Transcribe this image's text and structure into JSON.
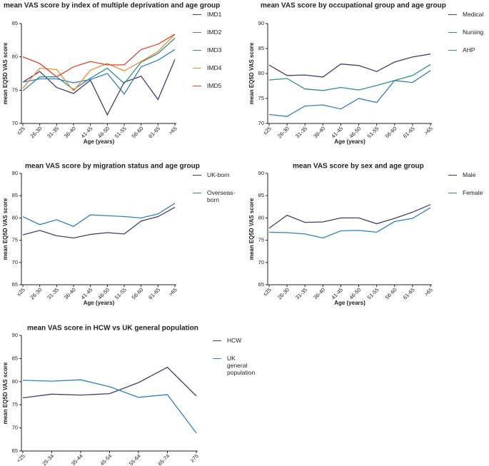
{
  "chart_data": [
    {
      "type": "line",
      "title": "mean VAS score by index of multiple deprivation and age group",
      "x_label": "Age (years)",
      "y_label": "mean EQ5D VAS score",
      "categories": [
        "≤25",
        "26-30",
        "31-35",
        "36-40",
        "41-45",
        "46-50",
        "51-55",
        "56-60",
        "61-65",
        ">65"
      ],
      "ylim": [
        70,
        85
      ],
      "yticks": [
        70,
        75,
        80,
        85
      ],
      "series": [
        {
          "name": "IMD1",
          "color": "#4b3a6b",
          "values": [
            76.2,
            77.8,
            75.4,
            74.5,
            76.5,
            71.3,
            76.2,
            77.1,
            73.6,
            79.6
          ]
        },
        {
          "name": "IMD2",
          "color": "#2f9088",
          "values": [
            74.9,
            77.0,
            77.0,
            75.1,
            76.8,
            78.3,
            76.0,
            79.2,
            80.5,
            82.8
          ]
        },
        {
          "name": "IMD3",
          "color": "#2f7fc1",
          "values": [
            76.2,
            76.7,
            76.7,
            76.1,
            76.6,
            77.5,
            74.4,
            78.5,
            79.5,
            81.1
          ]
        },
        {
          "name": "IMD4",
          "color": "#f28c28",
          "values": [
            75.3,
            78.3,
            78.1,
            74.9,
            78.0,
            79.0,
            77.9,
            79.3,
            80.8,
            83.4
          ]
        },
        {
          "name": "IMD5",
          "color": "#e0442a",
          "values": [
            80.0,
            79.0,
            77.0,
            78.5,
            79.3,
            78.8,
            78.8,
            81.1,
            81.9,
            83.4
          ]
        }
      ]
    },
    {
      "type": "line",
      "title": "mean VAS score by occupational group and age group",
      "x_label": "Age (years)",
      "y_label": "mean EQ5D VAS score",
      "categories": [
        "≤25",
        "26-30",
        "31-35",
        "36-40",
        "41-45",
        "46-50",
        "51-55",
        "56-60",
        "61-65",
        ">65"
      ],
      "ylim": [
        70,
        90
      ],
      "yticks": [
        70,
        75,
        80,
        85,
        90
      ],
      "series": [
        {
          "name": "Medical",
          "color": "#4b3a6b",
          "values": [
            81.7,
            79.6,
            79.7,
            79.3,
            81.9,
            81.6,
            80.4,
            82.3,
            83.3,
            83.9
          ]
        },
        {
          "name": "Nursing",
          "color": "#2f9088",
          "values": [
            78.7,
            79.0,
            76.9,
            76.6,
            77.2,
            76.7,
            77.6,
            78.6,
            79.6,
            81.8
          ]
        },
        {
          "name": "AHP",
          "color": "#2f7fc1",
          "values": [
            71.8,
            71.4,
            73.5,
            73.7,
            72.9,
            75.0,
            74.2,
            78.6,
            78.2,
            80.6
          ]
        }
      ]
    },
    {
      "type": "line",
      "title": "mean VAS score by migration status and age group",
      "x_label": "Age (years)",
      "y_label": "mean EQ5D VAS score",
      "categories": [
        "≤25",
        "26-30",
        "31-35",
        "36-40",
        "41-45",
        "46-50",
        "51-55",
        "56-60",
        "61-65",
        ">65"
      ],
      "ylim": [
        65,
        90
      ],
      "yticks": [
        65,
        70,
        75,
        80,
        85,
        90
      ],
      "series": [
        {
          "name": "UK-born",
          "color": "#4b3a6b",
          "values": [
            76.2,
            77.2,
            76.0,
            75.5,
            76.3,
            76.7,
            76.4,
            79.3,
            80.3,
            82.4
          ]
        },
        {
          "name": "Overseas-born",
          "color": "#2f7fc1",
          "values": [
            80.3,
            78.5,
            79.6,
            78.1,
            80.7,
            80.5,
            80.3,
            80.0,
            80.9,
            83.3
          ]
        }
      ]
    },
    {
      "type": "line",
      "title": "mean VAS score by sex and age group",
      "x_label": "Age (years)",
      "y_label": "mean EQ5D VAS score",
      "categories": [
        "≤25",
        "26-30",
        "31-35",
        "36-40",
        "41-45",
        "46-50",
        "51-55",
        "56-60",
        "61-65",
        ">65"
      ],
      "ylim": [
        65,
        90
      ],
      "yticks": [
        65,
        70,
        75,
        80,
        85,
        90
      ],
      "series": [
        {
          "name": "Male",
          "color": "#4b3a6b",
          "values": [
            77.7,
            80.6,
            79.0,
            79.1,
            80.0,
            80.0,
            78.7,
            79.9,
            81.3,
            83.0
          ]
        },
        {
          "name": "Female",
          "color": "#2f7fc1",
          "values": [
            76.8,
            76.7,
            76.4,
            75.5,
            77.1,
            77.2,
            76.8,
            79.2,
            79.9,
            82.3
          ]
        }
      ]
    },
    {
      "type": "line",
      "title": "mean VAS score in HCW vs UK general population",
      "x_label": "Age (years)",
      "y_label": "mean EQ5D VAS score",
      "categories": [
        "<25",
        "25-34",
        "35-44",
        "45-54",
        "55-64",
        "65-74",
        "≥75"
      ],
      "ylim": [
        65,
        90
      ],
      "yticks": [
        65,
        70,
        75,
        80,
        85,
        90
      ],
      "series": [
        {
          "name": "HCW",
          "color": "#4b3a6b",
          "values": [
            76.5,
            77.3,
            77.1,
            77.4,
            79.8,
            83.1,
            76.9
          ]
        },
        {
          "name": "UK general population",
          "color": "#2f7fc1",
          "values": [
            80.3,
            80.1,
            80.4,
            78.9,
            76.6,
            77.2,
            68.9
          ]
        }
      ]
    }
  ]
}
